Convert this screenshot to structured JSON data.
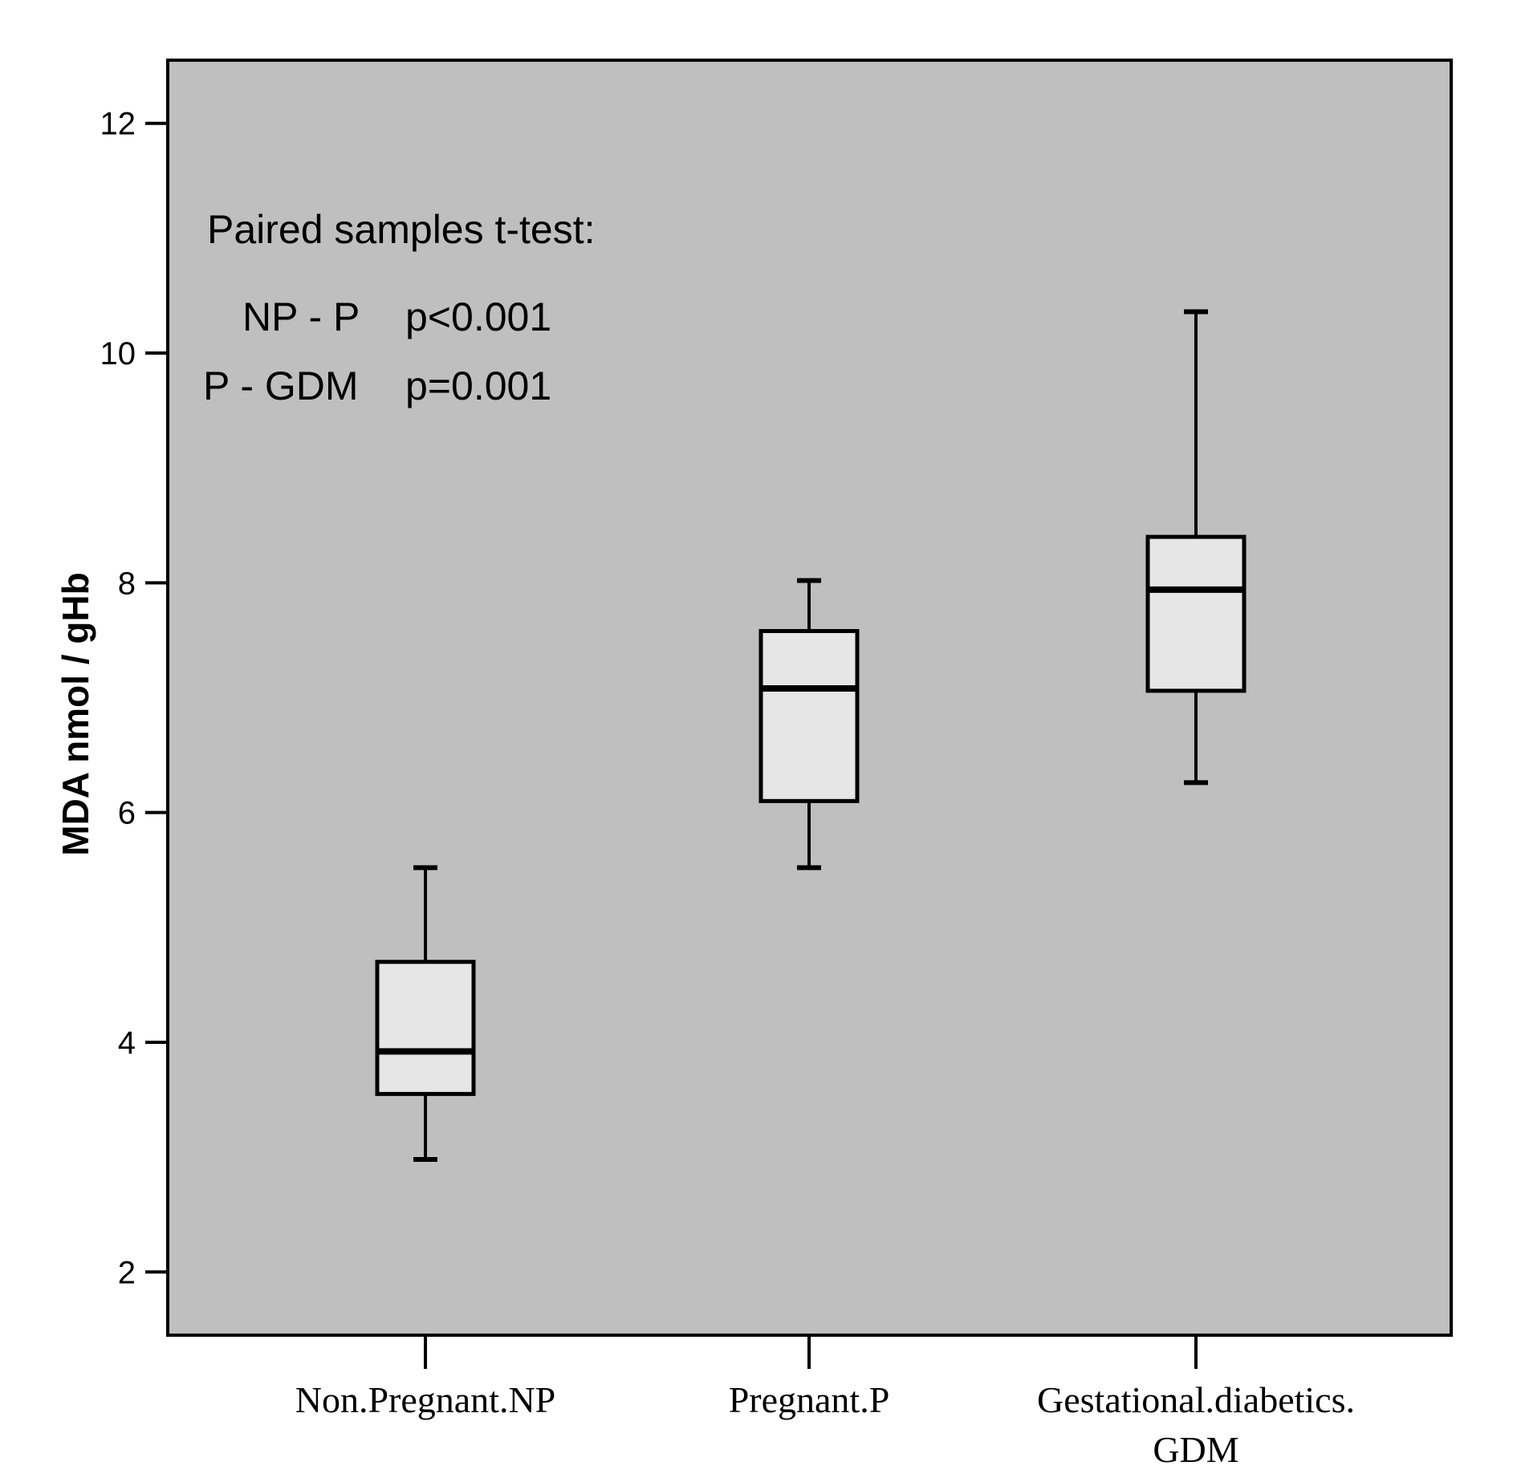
{
  "chart_data": {
    "type": "box",
    "title": "",
    "ylabel": "MDA nmol / gHb",
    "xlabel": "",
    "ylim": [
      1.45,
      12.55
    ],
    "yticks": [
      2,
      4,
      6,
      8,
      10,
      12
    ],
    "background_color": "#bfbfbf",
    "box_fill_color": "#e6e6e6",
    "line_color": "#000000",
    "categories": [
      {
        "label_lines": [
          "Non.Pregnant.NP"
        ]
      },
      {
        "label_lines": [
          "Pregnant.P"
        ]
      },
      {
        "label_lines": [
          "Gestational.diabetics.",
          "GDM"
        ]
      }
    ],
    "boxes": [
      {
        "min": 2.98,
        "q1": 3.55,
        "median": 3.92,
        "q3": 4.7,
        "max": 5.52
      },
      {
        "min": 5.52,
        "q1": 6.1,
        "median": 7.08,
        "q3": 7.58,
        "max": 8.02
      },
      {
        "min": 6.26,
        "q1": 7.06,
        "median": 7.94,
        "q3": 8.4,
        "max": 10.36
      }
    ],
    "annotation": {
      "heading": "Paired samples t-test:",
      "rows": [
        {
          "pair": "NP - P",
          "p": "p<0.001"
        },
        {
          "pair": "P - GDM",
          "p": "p=0.001"
        }
      ]
    }
  }
}
